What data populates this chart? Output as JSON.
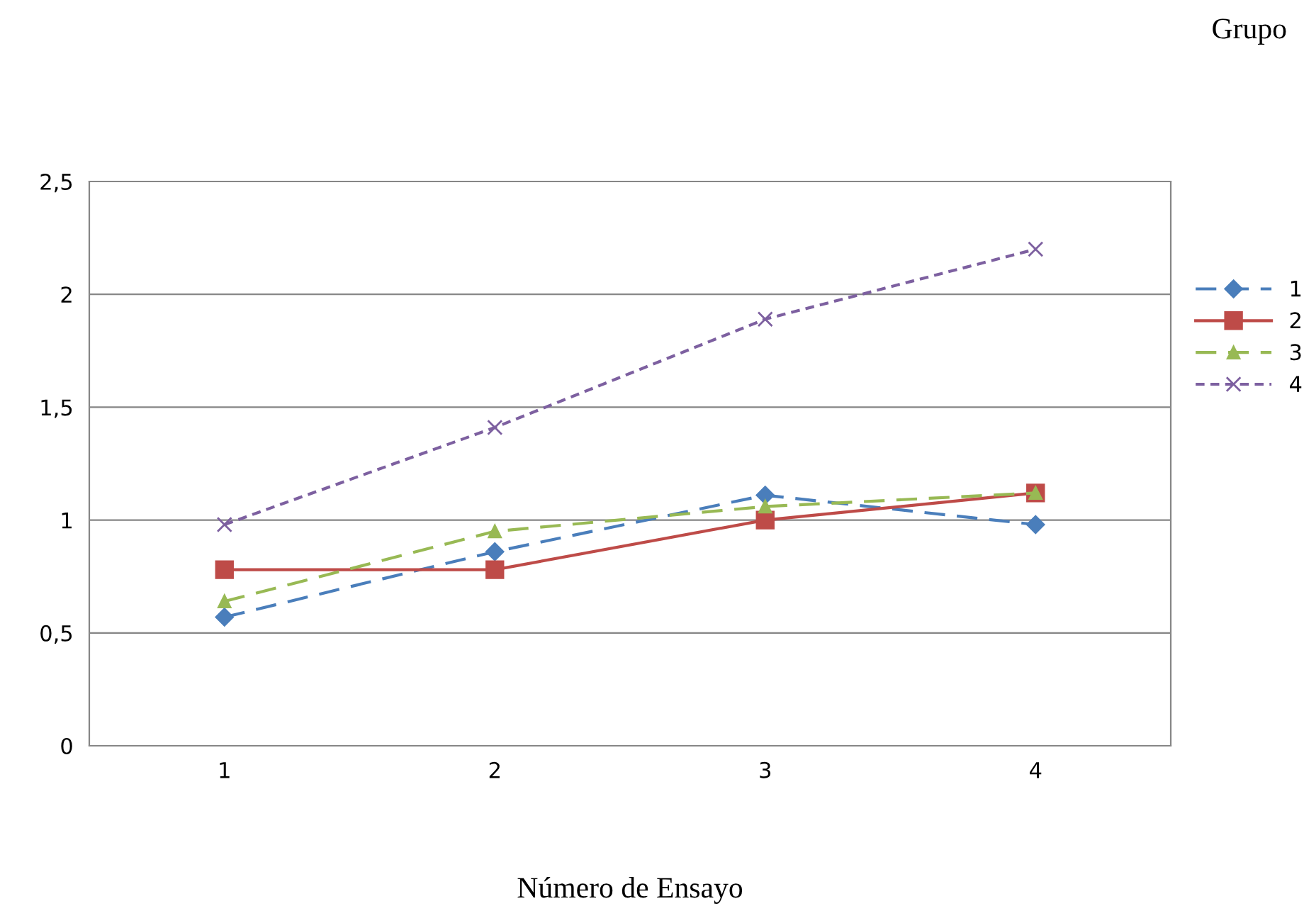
{
  "chart_data": {
    "type": "line",
    "xlabel": "Número de Ensayo",
    "legend_title": "Grupo",
    "categories": [
      "1",
      "2",
      "3",
      "4"
    ],
    "series": [
      {
        "name": "1",
        "color": "#4a7ebb",
        "marker": "diamond",
        "line_style": "dashed",
        "values": [
          0.57,
          0.86,
          1.11,
          0.98
        ]
      },
      {
        "name": "2",
        "color": "#be4b48",
        "marker": "square",
        "line_style": "solid",
        "values": [
          0.78,
          0.78,
          1.0,
          1.12
        ]
      },
      {
        "name": "3",
        "color": "#98b954",
        "marker": "triangle",
        "line_style": "dashed",
        "values": [
          0.64,
          0.95,
          1.06,
          1.12
        ]
      },
      {
        "name": "4",
        "color": "#7d60a0",
        "marker": "cross",
        "line_style": "dotted",
        "values": [
          0.98,
          1.41,
          1.89,
          2.2
        ]
      }
    ],
    "ylim": [
      0,
      2.5
    ],
    "yticks": [
      0,
      {
        "value": 0.5,
        "label": "0,5"
      },
      1,
      {
        "value": 1.5,
        "label": "1,5"
      },
      2,
      {
        "value": 2.5,
        "label": "2,5"
      }
    ],
    "grid": "y",
    "legend": "right"
  }
}
